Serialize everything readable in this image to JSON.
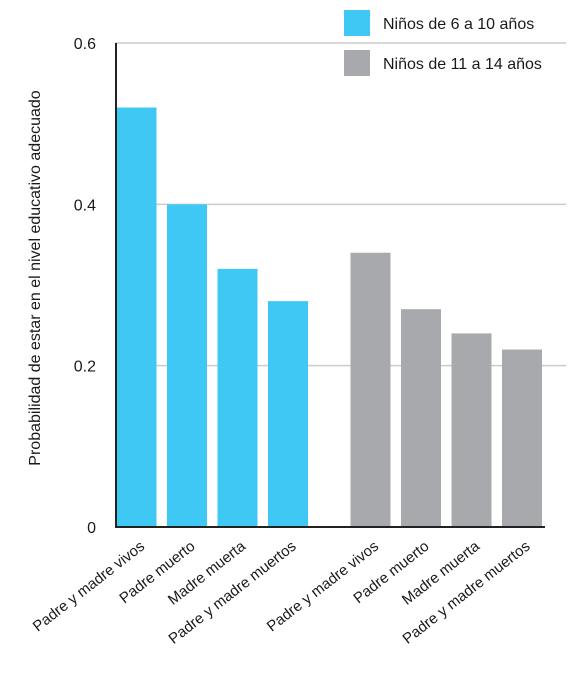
{
  "chart_data": {
    "type": "bar",
    "title": "",
    "xlabel": "",
    "ylabel": "Probabilidad de estar en el nivel educativo adecuado",
    "ylim": [
      0,
      0.6
    ],
    "yticks": [
      {
        "value": 0,
        "label": "0"
      },
      {
        "value": 0.2,
        "label": "0.2"
      },
      {
        "value": 0.4,
        "label": "0.4"
      },
      {
        "value": 0.6,
        "label": "0.6"
      }
    ],
    "grid": true,
    "legend_position": "top-right",
    "categories": [
      "Padre y madre vivos",
      "Padre muerto",
      "Madre muerta",
      "Padre y madre muertos"
    ],
    "series": [
      {
        "name": "Niños de 6 a 10 años",
        "color": "#40c8f4",
        "values": [
          0.52,
          0.4,
          0.32,
          0.28
        ]
      },
      {
        "name": "Niños de 11 a 14 años",
        "color": "#a7a9ac",
        "values": [
          0.34,
          0.27,
          0.24,
          0.22
        ]
      }
    ]
  }
}
